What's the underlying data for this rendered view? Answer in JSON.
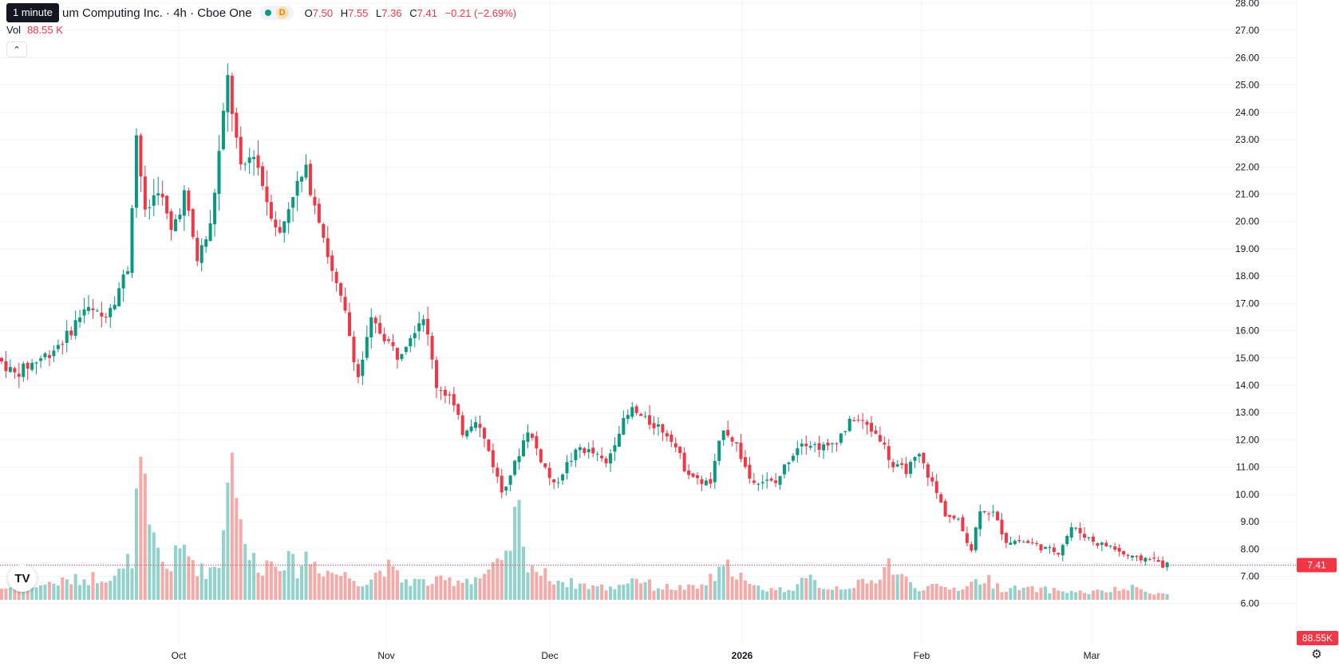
{
  "header": {
    "tooltip": "1 minute",
    "title_visible": "um Computing Inc. · 4h · Cboe One",
    "pill_dot_icon": "green-dot-icon",
    "pill_d_label": "D",
    "ohlc": {
      "o_label": "O",
      "o_value": "7.50",
      "h_label": "H",
      "h_value": "7.55",
      "l_label": "L",
      "l_value": "7.36",
      "c_label": "C",
      "c_value": "7.41",
      "change": "−0.21 (−2.69%)"
    },
    "vol_label": "Vol",
    "vol_value": "88.55 K",
    "collapse_icon": "chevron-up-icon"
  },
  "colors": {
    "up": "#089981",
    "down": "#f23645",
    "vol_up": "#92d2cc",
    "vol_down": "#f7a9a7",
    "grid": "#f0f3fa",
    "price_tag": "#f23645"
  },
  "logo_icon": "tradingview-logo-icon",
  "settings_icon": "gear-icon",
  "chart_data": {
    "type": "candlestick",
    "interval": "4h",
    "y_axis": {
      "ylim": [
        5.7,
        28.0
      ],
      "ticks": [
        "28.00",
        "27.00",
        "26.00",
        "25.00",
        "24.00",
        "23.00",
        "22.00",
        "21.00",
        "20.00",
        "19.00",
        "18.00",
        "17.00",
        "16.00",
        "15.00",
        "14.00",
        "13.00",
        "12.00",
        "11.00",
        "10.00",
        "9.00",
        "8.00",
        "7.00",
        "6.00"
      ]
    },
    "x_axis": {
      "labels": [
        "Oct",
        "Nov",
        "Dec",
        "2026",
        "Feb",
        "Mar"
      ],
      "bold": [
        false,
        false,
        false,
        true,
        false,
        false
      ]
    },
    "last_price": "7.41",
    "last_volume": "88.55K",
    "grid": true,
    "price_keyframes": [
      [
        0,
        15.0
      ],
      [
        4,
        14.4
      ],
      [
        8,
        14.8
      ],
      [
        12,
        15.2
      ],
      [
        16,
        15.8
      ],
      [
        20,
        16.8
      ],
      [
        24,
        16.5
      ],
      [
        27,
        17.2
      ],
      [
        30,
        18.3
      ],
      [
        32,
        23.2
      ],
      [
        34,
        20.2
      ],
      [
        37,
        21.3
      ],
      [
        40,
        19.6
      ],
      [
        43,
        21.0
      ],
      [
        46,
        18.6
      ],
      [
        49,
        19.8
      ],
      [
        53,
        25.2
      ],
      [
        56,
        21.8
      ],
      [
        59,
        22.6
      ],
      [
        62,
        20.8
      ],
      [
        65,
        19.5
      ],
      [
        68,
        21.1
      ],
      [
        71,
        21.8
      ],
      [
        74,
        20.2
      ],
      [
        77,
        18.1
      ],
      [
        80,
        16.6
      ],
      [
        83,
        14.3
      ],
      [
        86,
        16.3
      ],
      [
        89,
        15.8
      ],
      [
        92,
        15.1
      ],
      [
        95,
        15.9
      ],
      [
        98,
        16.6
      ],
      [
        101,
        14.0
      ],
      [
        104,
        13.6
      ],
      [
        107,
        12.3
      ],
      [
        110,
        12.8
      ],
      [
        113,
        11.6
      ],
      [
        116,
        10.1
      ],
      [
        119,
        11.1
      ],
      [
        122,
        12.4
      ],
      [
        125,
        11.3
      ],
      [
        128,
        10.3
      ],
      [
        131,
        11.1
      ],
      [
        134,
        11.7
      ],
      [
        137,
        11.5
      ],
      [
        140,
        11.1
      ],
      [
        143,
        12.4
      ],
      [
        146,
        13.1
      ],
      [
        149,
        12.7
      ],
      [
        152,
        12.5
      ],
      [
        155,
        12.1
      ],
      [
        158,
        11.0
      ],
      [
        161,
        10.5
      ],
      [
        164,
        10.4
      ],
      [
        167,
        12.5
      ],
      [
        170,
        11.8
      ],
      [
        173,
        10.6
      ],
      [
        176,
        10.5
      ],
      [
        179,
        10.4
      ],
      [
        182,
        11.3
      ],
      [
        185,
        12.0
      ],
      [
        188,
        11.8
      ],
      [
        191,
        11.7
      ],
      [
        194,
        12.2
      ],
      [
        197,
        12.8
      ],
      [
        200,
        12.5
      ],
      [
        203,
        12.1
      ],
      [
        206,
        11.0
      ],
      [
        209,
        10.9
      ],
      [
        212,
        11.4
      ],
      [
        215,
        10.4
      ],
      [
        218,
        9.3
      ],
      [
        221,
        9.0
      ],
      [
        224,
        8.0
      ],
      [
        226,
        9.5
      ],
      [
        229,
        9.3
      ],
      [
        232,
        8.3
      ],
      [
        235,
        8.3
      ],
      [
        238,
        8.2
      ],
      [
        241,
        8.0
      ],
      [
        244,
        7.9
      ],
      [
        247,
        8.8
      ],
      [
        250,
        8.5
      ],
      [
        253,
        8.2
      ],
      [
        256,
        8.1
      ],
      [
        259,
        7.8
      ],
      [
        262,
        7.6
      ],
      [
        265,
        7.7
      ],
      [
        268,
        7.41
      ]
    ],
    "volume_keyframes": [
      [
        0,
        40
      ],
      [
        10,
        55
      ],
      [
        20,
        75
      ],
      [
        28,
        95
      ],
      [
        30,
        160
      ],
      [
        32,
        450
      ],
      [
        34,
        220
      ],
      [
        38,
        110
      ],
      [
        42,
        180
      ],
      [
        46,
        100
      ],
      [
        50,
        120
      ],
      [
        52,
        480
      ],
      [
        54,
        470
      ],
      [
        56,
        160
      ],
      [
        60,
        120
      ],
      [
        64,
        150
      ],
      [
        68,
        110
      ],
      [
        70,
        150
      ],
      [
        75,
        100
      ],
      [
        80,
        80
      ],
      [
        84,
        60
      ],
      [
        88,
        120
      ],
      [
        92,
        70
      ],
      [
        98,
        60
      ],
      [
        105,
        70
      ],
      [
        110,
        80
      ],
      [
        116,
        130
      ],
      [
        118,
        270
      ],
      [
        119,
        290
      ],
      [
        120,
        160
      ],
      [
        124,
        90
      ],
      [
        130,
        60
      ],
      [
        140,
        40
      ],
      [
        146,
        80
      ],
      [
        150,
        45
      ],
      [
        160,
        40
      ],
      [
        168,
        120
      ],
      [
        172,
        45
      ],
      [
        180,
        35
      ],
      [
        186,
        70
      ],
      [
        190,
        40
      ],
      [
        200,
        60
      ],
      [
        204,
        130
      ],
      [
        206,
        90
      ],
      [
        210,
        45
      ],
      [
        220,
        40
      ],
      [
        226,
        75
      ],
      [
        230,
        40
      ],
      [
        240,
        35
      ],
      [
        250,
        25
      ],
      [
        260,
        40
      ],
      [
        268,
        18
      ]
    ],
    "volume_scale_max": 500
  }
}
